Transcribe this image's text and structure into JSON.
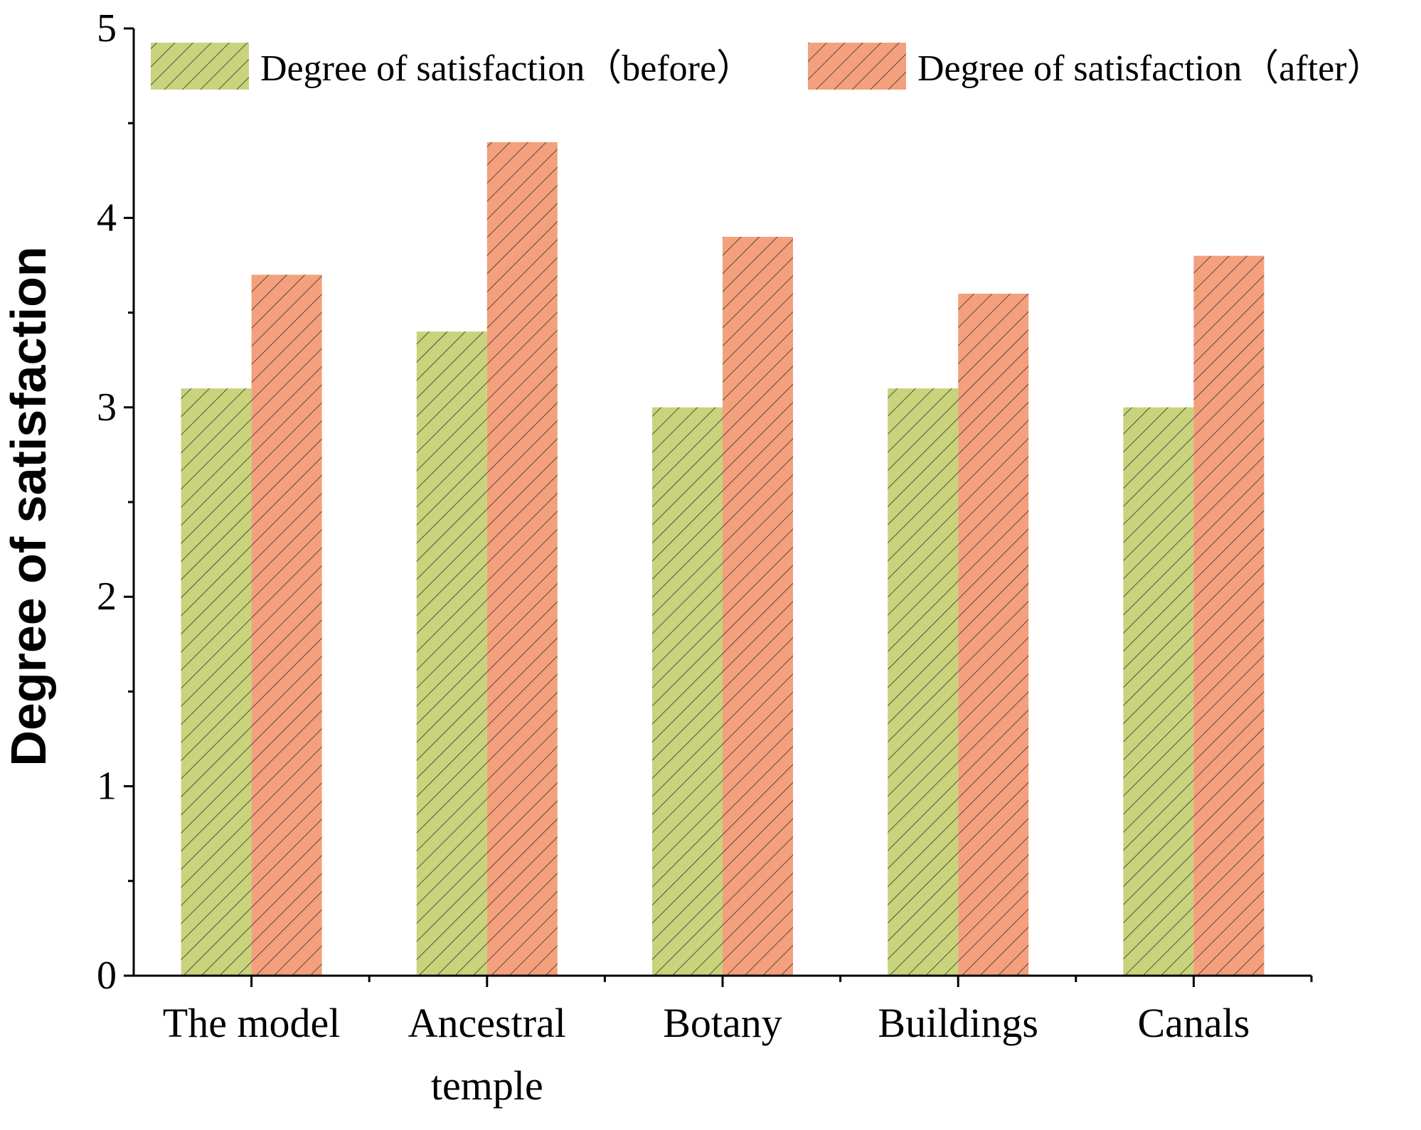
{
  "chart_data": {
    "type": "bar",
    "title": "",
    "xlabel": "",
    "ylabel": "Degree of satisfaction",
    "ylim": [
      0,
      5
    ],
    "yticks": [
      0,
      1,
      2,
      3,
      4,
      5
    ],
    "grid": false,
    "legend_position": "top",
    "categories": [
      [
        "The model"
      ],
      [
        "Ancestral",
        "temple"
      ],
      [
        "Botany"
      ],
      [
        "Buildings"
      ],
      [
        "Canals"
      ]
    ],
    "series": [
      {
        "name": "Degree of satisfaction（before）",
        "color": "#c8d37b",
        "values": [
          3.1,
          3.4,
          3.0,
          3.1,
          3.0
        ]
      },
      {
        "name": "Degree of satisfaction（after）",
        "color": "#f4a07c",
        "values": [
          3.7,
          4.4,
          3.9,
          3.6,
          3.8
        ]
      }
    ]
  }
}
